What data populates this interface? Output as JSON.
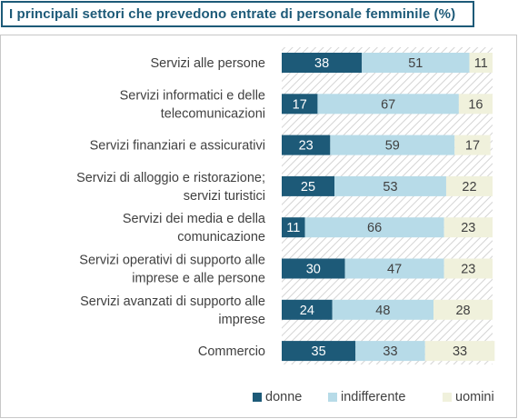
{
  "title": "I principali settori che prevedono entrate di personale femminile (%)",
  "chart_data": {
    "type": "bar",
    "orientation": "horizontal",
    "stacked": true,
    "categories": [
      [
        "Servizi alle persone"
      ],
      [
        "Servizi informatici e delle",
        "telecomunicazioni"
      ],
      [
        "Servizi finanziari e assicurativi"
      ],
      [
        "Servizi di alloggio e ristorazione;",
        "servizi turistici"
      ],
      [
        "Servizi dei media e della",
        "comunicazione"
      ],
      [
        "Servizi operativi di supporto alle",
        "imprese e alle persone"
      ],
      [
        "Servizi avanzati di supporto alle",
        "imprese"
      ],
      [
        "Commercio"
      ]
    ],
    "series": [
      {
        "name": "donne",
        "color": "#1d5a78",
        "label_color": "#ffffff",
        "values": [
          38,
          17,
          23,
          25,
          11,
          30,
          24,
          35
        ]
      },
      {
        "name": "indifferente",
        "color": "#b7dbe8",
        "label_color": "#404040",
        "values": [
          51,
          67,
          59,
          53,
          66,
          47,
          48,
          33
        ]
      },
      {
        "name": "uomini",
        "color": "#f0f1dc",
        "label_color": "#404040",
        "values": [
          11,
          16,
          17,
          22,
          23,
          23,
          28,
          33
        ]
      }
    ],
    "xlim": [
      0,
      100
    ],
    "legend_position": "bottom-right",
    "background_pattern": "diagonal-hatch"
  }
}
